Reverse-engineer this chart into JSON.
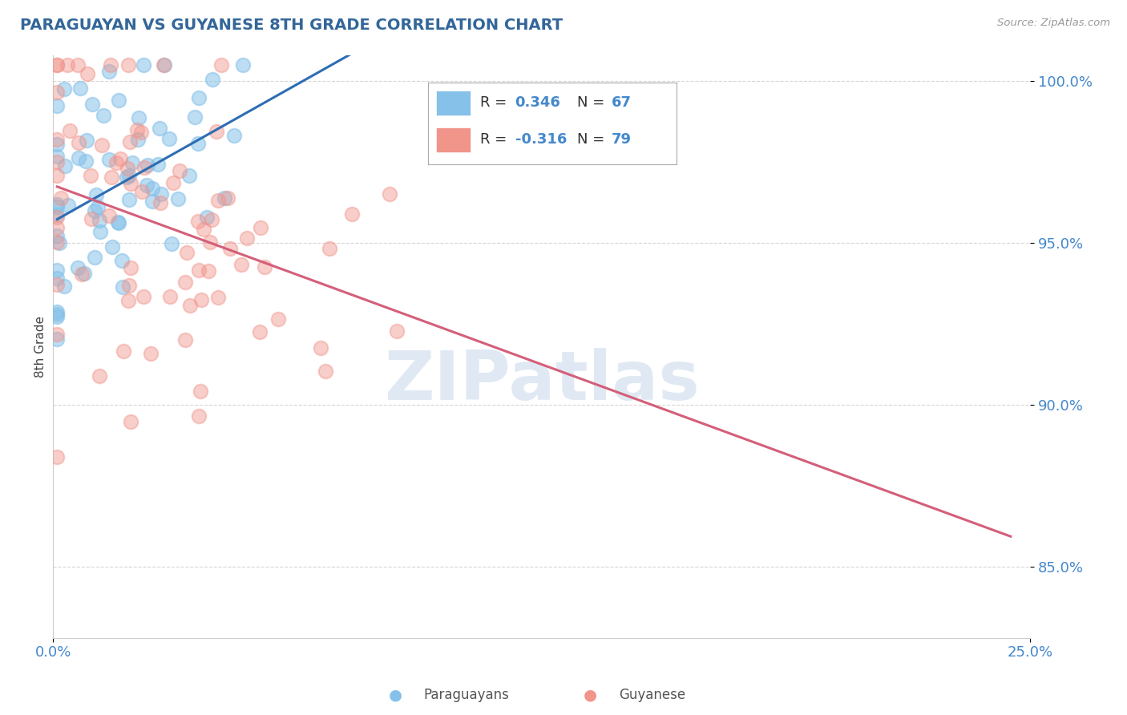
{
  "title": "PARAGUAYAN VS GUYANESE 8TH GRADE CORRELATION CHART",
  "source": "Source: ZipAtlas.com",
  "ylabel": "8th Grade",
  "ylim": [
    0.828,
    1.008
  ],
  "xlim": [
    0.0,
    0.25
  ],
  "yticks": [
    0.85,
    0.9,
    0.95,
    1.0
  ],
  "ytick_labels": [
    "85.0%",
    "90.0%",
    "95.0%",
    "100.0%"
  ],
  "blue_color": "#85C1E9",
  "pink_color": "#F1948A",
  "blue_line_color": "#2E6DB4",
  "pink_line_color": "#D45F7A",
  "legend_blue_r_val": "0.346",
  "legend_blue_n_val": "67",
  "legend_pink_r_val": "-0.316",
  "legend_pink_n_val": "79",
  "blue_r": 0.346,
  "blue_n": 67,
  "pink_r": -0.316,
  "pink_n": 79,
  "watermark": "ZIPatlas",
  "background_color": "#ffffff",
  "grid_color": "#cccccc",
  "title_color": "#336699",
  "axis_label_color": "#444444",
  "tick_label_color": "#4488cc",
  "legend_label_color": "#333333"
}
